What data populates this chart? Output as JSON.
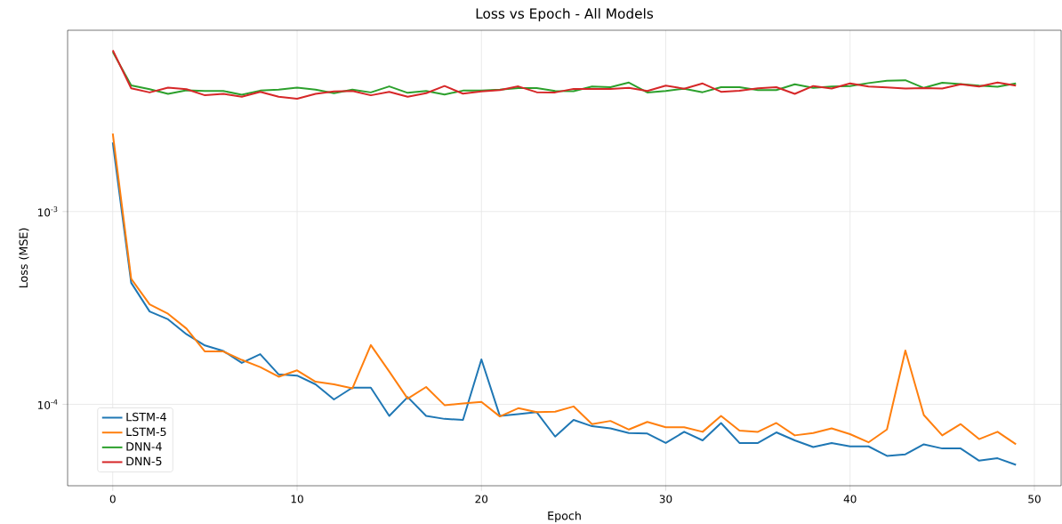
{
  "chart_data": {
    "type": "line",
    "title": "Loss vs Epoch - All Models",
    "xlabel": "Epoch",
    "ylabel": "Loss (MSE)",
    "x": [
      0,
      1,
      2,
      3,
      4,
      5,
      6,
      7,
      8,
      9,
      10,
      11,
      12,
      13,
      14,
      15,
      16,
      17,
      18,
      19,
      20,
      21,
      22,
      23,
      24,
      25,
      26,
      27,
      28,
      29,
      30,
      31,
      32,
      33,
      34,
      35,
      36,
      37,
      38,
      39,
      40,
      41,
      42,
      43,
      44,
      45,
      46,
      47,
      48,
      49
    ],
    "series": [
      {
        "name": "LSTM-4",
        "color": "#1f77b4",
        "values": [
          0.00228,
          0.000427,
          0.000303,
          0.000276,
          0.000231,
          0.000202,
          0.000189,
          0.000164,
          0.000182,
          0.000143,
          0.000141,
          0.000127,
          0.000106,
          0.000122,
          0.000122,
          8.7e-05,
          0.000109,
          8.7e-05,
          8.4e-05,
          8.3e-05,
          0.000171,
          8.7e-05,
          8.9e-05,
          9.1e-05,
          6.8e-05,
          8.3e-05,
          7.7e-05,
          7.5e-05,
          7.1e-05,
          7.05e-05,
          6.3e-05,
          7.2e-05,
          6.5e-05,
          8e-05,
          6.3e-05,
          6.3e-05,
          7.15e-05,
          6.5e-05,
          6e-05,
          6.3e-05,
          6.05e-05,
          6.05e-05,
          5.4e-05,
          5.5e-05,
          6.2e-05,
          5.9e-05,
          5.9e-05,
          5.1e-05,
          5.25e-05,
          4.85e-05
        ]
      },
      {
        "name": "LSTM-5",
        "color": "#ff7f0e",
        "values": [
          0.00254,
          0.000448,
          0.00033,
          0.000295,
          0.000247,
          0.000188,
          0.000188,
          0.00017,
          0.000156,
          0.000139,
          0.00015,
          0.000131,
          0.000127,
          0.000121,
          0.000203,
          0.000148,
          0.000107,
          0.000123,
          9.9e-05,
          0.000101,
          0.000103,
          8.65e-05,
          9.55e-05,
          9.1e-05,
          9.15e-05,
          9.75e-05,
          7.9e-05,
          8.2e-05,
          7.4e-05,
          8.1e-05,
          7.6e-05,
          7.6e-05,
          7.2e-05,
          8.7e-05,
          7.3e-05,
          7.2e-05,
          8e-05,
          6.9e-05,
          7.1e-05,
          7.5e-05,
          7e-05,
          6.35e-05,
          7.4e-05,
          0.00019,
          8.8e-05,
          6.9e-05,
          7.9e-05,
          6.6e-05,
          7.2e-05,
          6.2e-05
        ]
      },
      {
        "name": "DNN-4",
        "color": "#2ca02c",
        "values": [
          0.00673,
          0.00451,
          0.00431,
          0.00408,
          0.00426,
          0.00422,
          0.00422,
          0.00404,
          0.00424,
          0.00429,
          0.00439,
          0.00429,
          0.00411,
          0.00429,
          0.00415,
          0.00446,
          0.00413,
          0.00422,
          0.00405,
          0.00424,
          0.00424,
          0.00429,
          0.00437,
          0.00437,
          0.00422,
          0.00421,
          0.00445,
          0.00442,
          0.00467,
          0.00415,
          0.00422,
          0.00434,
          0.00416,
          0.00442,
          0.00442,
          0.00427,
          0.00427,
          0.00457,
          0.00438,
          0.00445,
          0.00448,
          0.00464,
          0.00477,
          0.0048,
          0.00438,
          0.00466,
          0.00459,
          0.0045,
          0.00444,
          0.00462
        ]
      },
      {
        "name": "DNN-5",
        "color": "#d62728",
        "values": [
          0.00687,
          0.00436,
          0.00415,
          0.00439,
          0.00431,
          0.00401,
          0.00408,
          0.00394,
          0.00418,
          0.00394,
          0.00385,
          0.00408,
          0.0042,
          0.00422,
          0.00401,
          0.00418,
          0.00394,
          0.00411,
          0.00448,
          0.00409,
          0.0042,
          0.00427,
          0.00446,
          0.00416,
          0.00415,
          0.00433,
          0.00433,
          0.00433,
          0.00438,
          0.00422,
          0.0045,
          0.00434,
          0.00462,
          0.00418,
          0.00423,
          0.00436,
          0.00442,
          0.00408,
          0.00448,
          0.00435,
          0.00462,
          0.00445,
          0.00441,
          0.00435,
          0.00437,
          0.00435,
          0.00457,
          0.00445,
          0.00467,
          0.0045
        ]
      }
    ],
    "xlim": [
      -2.45,
      51.45
    ],
    "ylim": [
      3.78e-05,
      0.00872
    ],
    "xticks": [
      0,
      10,
      20,
      30,
      40,
      50
    ],
    "yticks": [
      {
        "value": 0.001,
        "label": "10$^{-3}$"
      },
      {
        "value": 0.0001,
        "label": "10$^{-4}$"
      }
    ],
    "log": "y",
    "grid": true,
    "legend": "bottom left",
    "line_style": "solid",
    "marker": "none"
  }
}
